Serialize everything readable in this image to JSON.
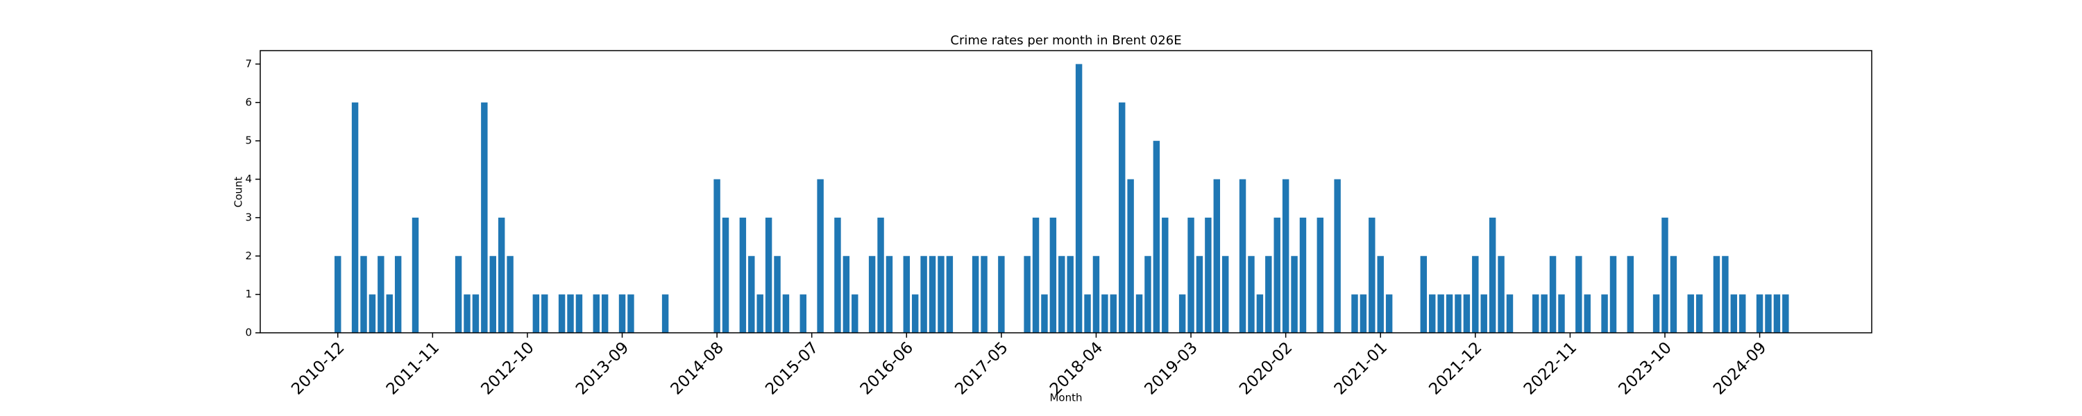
{
  "chart_data": {
    "type": "bar",
    "title": "Crime rates per month in Brent 026E",
    "x_label": "Month",
    "y_label": "Count",
    "color": "#1f77b4",
    "x": [
      "2010-12",
      "2011-02",
      "2011-03",
      "2011-04",
      "2011-05",
      "2011-06",
      "2011-07",
      "2011-09",
      "2012-02",
      "2012-03",
      "2012-04",
      "2012-05",
      "2012-06",
      "2012-07",
      "2012-08",
      "2012-11",
      "2012-12",
      "2013-02",
      "2013-03",
      "2013-04",
      "2013-06",
      "2013-07",
      "2013-09",
      "2013-10",
      "2014-02",
      "2014-08",
      "2014-09",
      "2014-11",
      "2014-12",
      "2015-01",
      "2015-02",
      "2015-03",
      "2015-04",
      "2015-06",
      "2015-08",
      "2015-10",
      "2015-11",
      "2015-12",
      "2016-02",
      "2016-03",
      "2016-04",
      "2016-06",
      "2016-07",
      "2016-08",
      "2016-09",
      "2016-10",
      "2016-11",
      "2017-02",
      "2017-03",
      "2017-05",
      "2017-08",
      "2017-09",
      "2017-10",
      "2017-11",
      "2017-12",
      "2018-01",
      "2018-02",
      "2018-03",
      "2018-04",
      "2018-05",
      "2018-06",
      "2018-07",
      "2018-08",
      "2018-09",
      "2018-10",
      "2018-11",
      "2018-12",
      "2019-02",
      "2019-03",
      "2019-04",
      "2019-05",
      "2019-06",
      "2019-07",
      "2019-09",
      "2019-10",
      "2019-11",
      "2019-12",
      "2020-01",
      "2020-02",
      "2020-03",
      "2020-04",
      "2020-06",
      "2020-08",
      "2020-10",
      "2020-11",
      "2020-12",
      "2021-01",
      "2021-02",
      "2021-06",
      "2021-07",
      "2021-08",
      "2021-09",
      "2021-10",
      "2021-11",
      "2021-12",
      "2022-01",
      "2022-02",
      "2022-03",
      "2022-04",
      "2022-07",
      "2022-08",
      "2022-09",
      "2022-10",
      "2022-12",
      "2023-01",
      "2023-03",
      "2023-04",
      "2023-06",
      "2023-09",
      "2023-10",
      "2023-11",
      "2024-01",
      "2024-02",
      "2024-04",
      "2024-05",
      "2024-06",
      "2024-07",
      "2024-09",
      "2024-10",
      "2024-11",
      "2024-12"
    ],
    "values": [
      2,
      6,
      2,
      1,
      2,
      1,
      2,
      3,
      2,
      1,
      1,
      6,
      2,
      3,
      2,
      1,
      1,
      1,
      1,
      1,
      1,
      1,
      1,
      1,
      1,
      4,
      3,
      3,
      2,
      1,
      3,
      2,
      1,
      1,
      4,
      3,
      2,
      1,
      2,
      3,
      2,
      2,
      1,
      2,
      2,
      2,
      2,
      2,
      2,
      2,
      2,
      3,
      1,
      3,
      2,
      2,
      7,
      1,
      2,
      1,
      1,
      6,
      4,
      1,
      2,
      5,
      3,
      1,
      3,
      2,
      3,
      4,
      2,
      4,
      2,
      1,
      2,
      3,
      4,
      2,
      3,
      3,
      4,
      1,
      1,
      3,
      2,
      1,
      2,
      1,
      1,
      1,
      1,
      1,
      2,
      1,
      3,
      2,
      1,
      1,
      1,
      2,
      1,
      2,
      1,
      1,
      2,
      2,
      1,
      3,
      2,
      1,
      1,
      2,
      2,
      1,
      1,
      1,
      1,
      1,
      1
    ],
    "xlim": [
      "2010-03",
      "2025-10"
    ],
    "xticks": [
      "2010-12",
      "2011-11",
      "2012-10",
      "2013-09",
      "2014-08",
      "2015-07",
      "2016-06",
      "2017-05",
      "2018-04",
      "2019-03",
      "2020-02",
      "2021-01",
      "2021-12",
      "2022-11",
      "2023-10",
      "2024-09"
    ],
    "ylim": [
      0,
      7.35
    ],
    "yticks": [
      0,
      1,
      2,
      3,
      4,
      5,
      6,
      7
    ],
    "grid": false
  }
}
